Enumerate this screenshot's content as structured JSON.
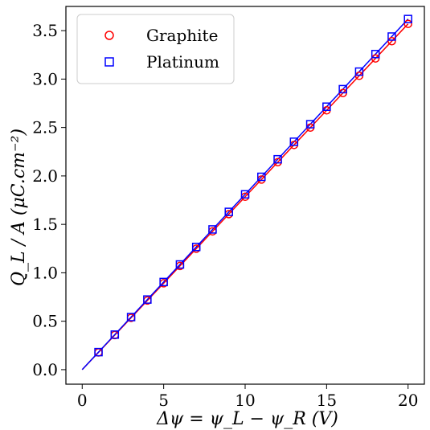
{
  "chart_data": {
    "type": "scatter",
    "xlabel": "Δψ = ψ_L − ψ_R (V)",
    "ylabel": "Q_L / A (μC.cm⁻²)",
    "xlim": [
      -1.0,
      21.0
    ],
    "ylim": [
      -0.15,
      3.75
    ],
    "x_ticks": [
      0,
      5,
      10,
      15,
      20
    ],
    "x_tick_labels": [
      "0",
      "5",
      "10",
      "15",
      "20"
    ],
    "y_ticks": [
      0.0,
      0.5,
      1.0,
      1.5,
      2.0,
      2.5,
      3.0,
      3.5
    ],
    "y_tick_labels": [
      "0.0",
      "0.5",
      "1.0",
      "1.5",
      "2.0",
      "2.5",
      "3.0",
      "3.5"
    ],
    "grid": false,
    "legend_position": "top-left",
    "x": [
      1,
      2,
      3,
      4,
      5,
      6,
      7,
      8,
      9,
      10,
      11,
      12,
      13,
      14,
      15,
      16,
      17,
      18,
      19,
      20
    ],
    "series": [
      {
        "name": "Graphite",
        "marker": "circle",
        "color": "#ff0000",
        "values": [
          0.178,
          0.357,
          0.535,
          0.714,
          0.892,
          1.071,
          1.249,
          1.428,
          1.606,
          1.785,
          1.963,
          2.142,
          2.32,
          2.499,
          2.677,
          2.856,
          3.034,
          3.213,
          3.391,
          3.57
        ],
        "fit_line": {
          "x": [
            0,
            20
          ],
          "y": [
            0.0,
            3.57
          ]
        }
      },
      {
        "name": "Platinum",
        "marker": "square",
        "color": "#0000ff",
        "values": [
          0.181,
          0.362,
          0.543,
          0.724,
          0.905,
          1.086,
          1.267,
          1.448,
          1.629,
          1.81,
          1.991,
          2.172,
          2.353,
          2.534,
          2.715,
          2.896,
          3.077,
          3.258,
          3.439,
          3.62
        ],
        "fit_line": {
          "x": [
            0,
            20
          ],
          "y": [
            0.0,
            3.62
          ]
        }
      }
    ]
  }
}
